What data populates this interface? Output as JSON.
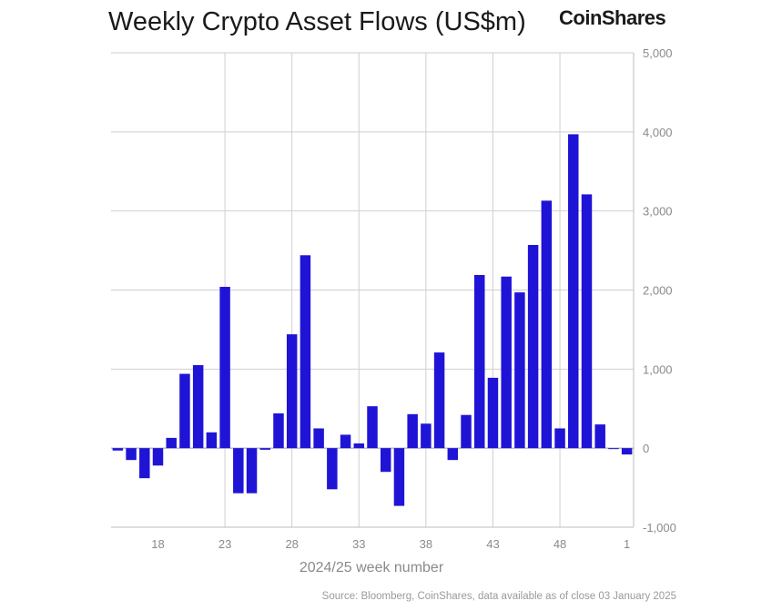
{
  "header": {
    "title": "Weekly Crypto Asset Flows (US$m)",
    "brand": "CoinShares"
  },
  "footer": {
    "source": "Source: Bloomberg, CoinShares, data available as of close 03 January 2025"
  },
  "chart_data": {
    "type": "bar",
    "title": "Weekly Crypto Asset Flows (US$m)",
    "xlabel": "2024/25 week number",
    "ylabel": "",
    "ylim": [
      -1000,
      5000
    ],
    "yticks": [
      -1000,
      0,
      1000,
      2000,
      3000,
      4000,
      5000
    ],
    "ytick_labels": [
      "-1,000",
      "0",
      "1,000",
      "2,000",
      "3,000",
      "4,000",
      "5,000"
    ],
    "xtick_labels": [
      "18",
      "23",
      "28",
      "33",
      "38",
      "43",
      "48",
      "1"
    ],
    "xtick_weeks": [
      "18",
      "23",
      "28",
      "33",
      "38",
      "43",
      "48",
      "1"
    ],
    "grid": true,
    "bar_color": "#1f14d6",
    "categories": [
      "15",
      "16",
      "17",
      "18",
      "19",
      "20",
      "21",
      "22",
      "23",
      "24",
      "25",
      "26",
      "27",
      "28",
      "29",
      "30",
      "31",
      "32",
      "33",
      "34",
      "35",
      "36",
      "37",
      "38",
      "39",
      "40",
      "41",
      "42",
      "43",
      "44",
      "45",
      "46",
      "47",
      "48",
      "49",
      "50",
      "51",
      "52",
      "1"
    ],
    "values": [
      -30,
      -150,
      -380,
      -220,
      130,
      940,
      1050,
      200,
      2040,
      -570,
      -570,
      -20,
      440,
      1440,
      2440,
      250,
      -520,
      170,
      60,
      530,
      -300,
      -730,
      430,
      310,
      1210,
      -150,
      420,
      2190,
      890,
      2170,
      1970,
      2570,
      3130,
      250,
      3970,
      3210,
      300,
      0,
      -80
    ]
  }
}
